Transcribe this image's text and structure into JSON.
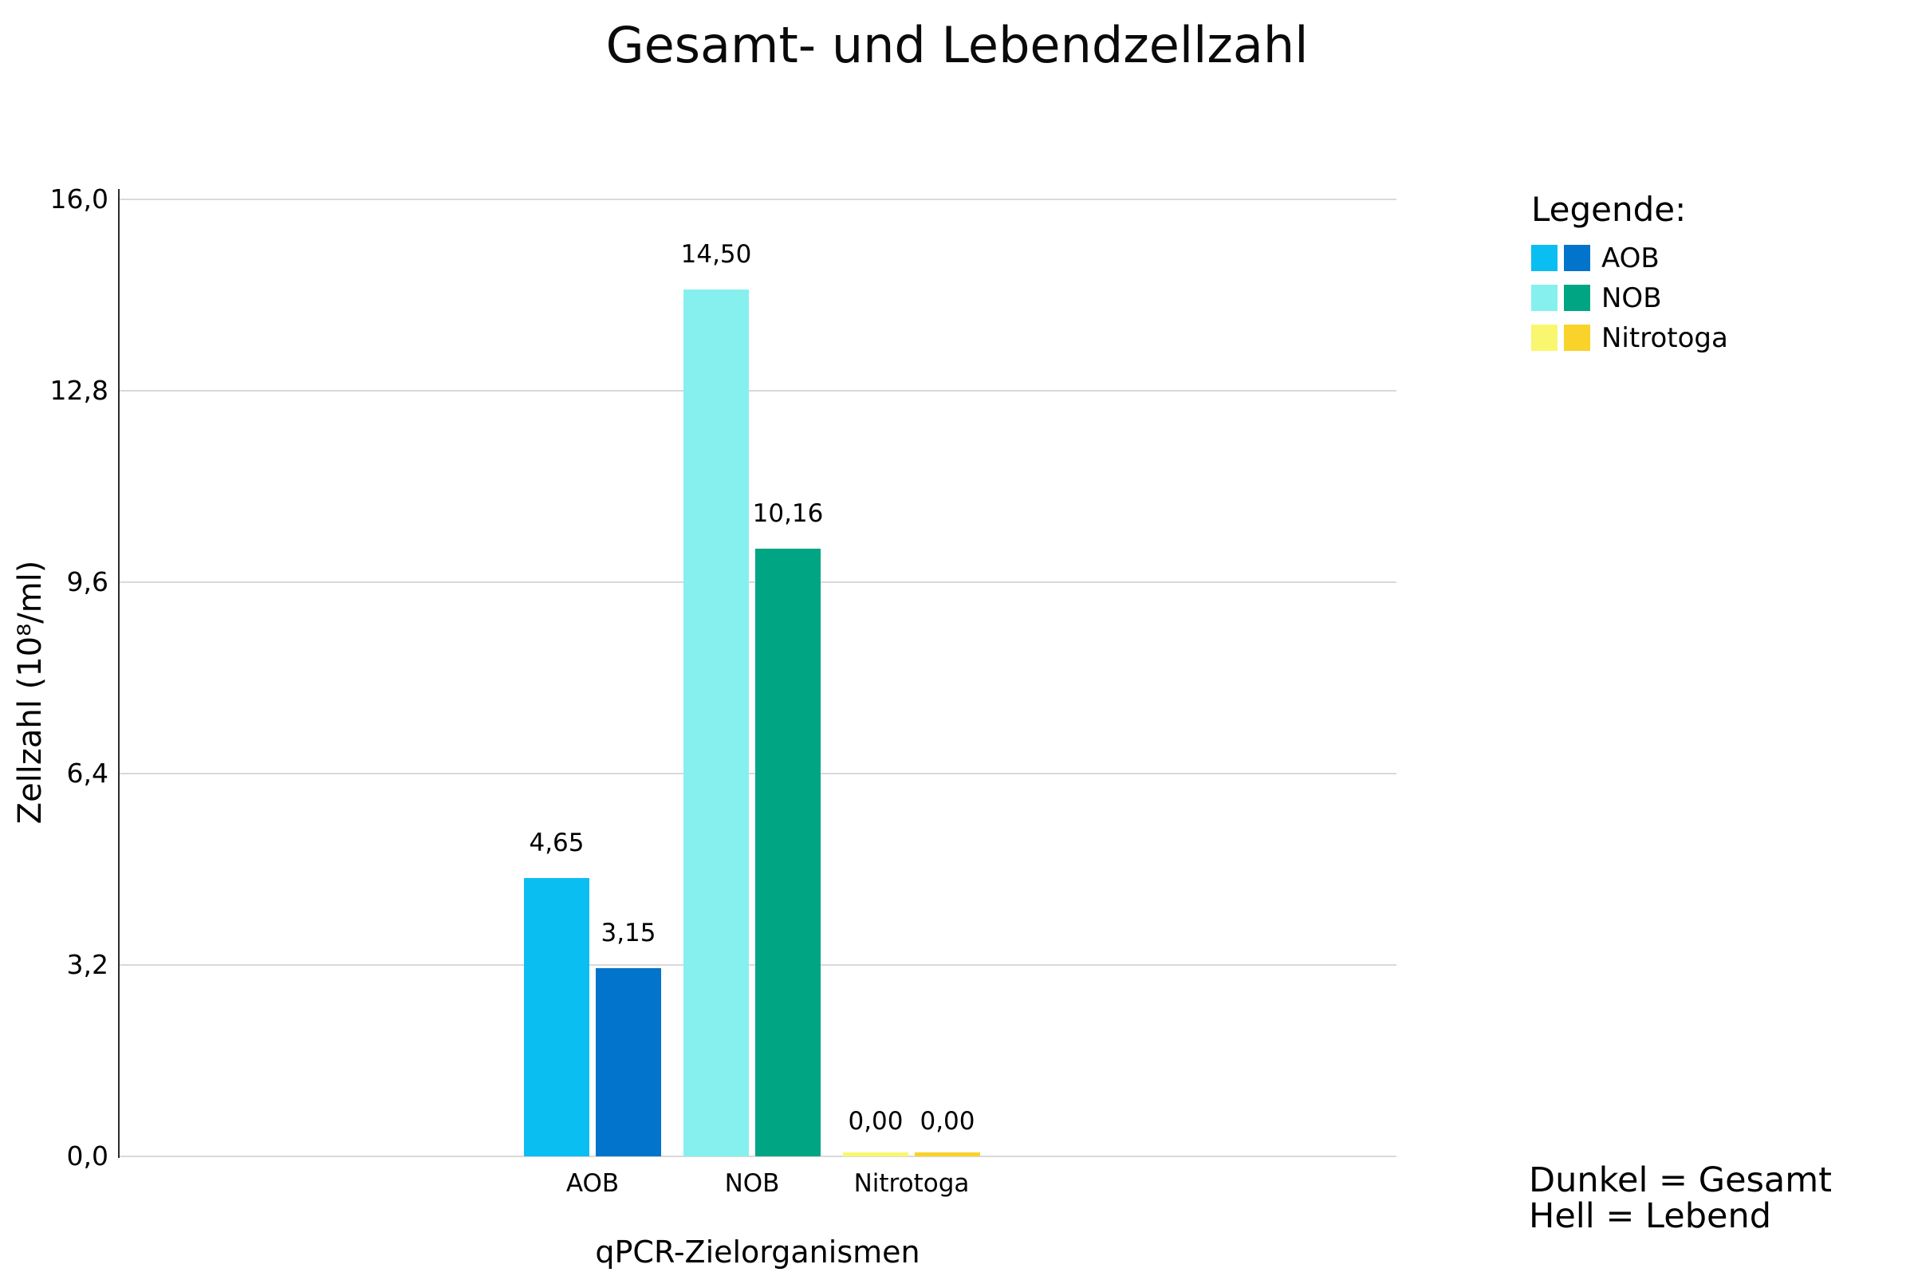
{
  "chart_data": {
    "type": "bar",
    "title": "Gesamt- und Lebendzellzahl",
    "xlabel": "qPCR-Zielorganismen",
    "ylabel": "Zellzahl (10⁸/ml)",
    "categories": [
      "AOB",
      "NOB",
      "Nitrotoga"
    ],
    "series": [
      {
        "name": "Hell = Lebend",
        "shade": "hell",
        "values": [
          4.65,
          14.5,
          0.0
        ],
        "labels": [
          "4,65",
          "14,50",
          "0,00"
        ],
        "colors": [
          "#0BBEF2",
          "#86F0EF",
          "#F8F76F"
        ]
      },
      {
        "name": "Dunkel = Gesamt",
        "shade": "dunkel",
        "values": [
          3.15,
          10.16,
          0.0
        ],
        "labels": [
          "3,15",
          "10,16",
          "0,00"
        ],
        "colors": [
          "#0374CC",
          "#00A584",
          "#F9D32A"
        ]
      }
    ],
    "ylim": [
      0,
      16
    ],
    "yticks": [
      "0,0",
      "3,2",
      "6,4",
      "9,6",
      "12,8",
      "16,0"
    ],
    "grid": true,
    "gridline_color": "#d9d9d9",
    "axis_line_color": "#2b2b2b",
    "legend_position": "right"
  },
  "legend": {
    "title": "Legende:",
    "items": [
      {
        "label": "AOB",
        "light": "#0BBEF2",
        "dark": "#0374CC"
      },
      {
        "label": "NOB",
        "light": "#86F0EF",
        "dark": "#00A584"
      },
      {
        "label": "Nitrotoga",
        "light": "#F8F76F",
        "dark": "#F9D32A"
      }
    ]
  },
  "footnote": {
    "line1": "Dunkel = Gesamt",
    "line2": "Hell = Lebend"
  }
}
